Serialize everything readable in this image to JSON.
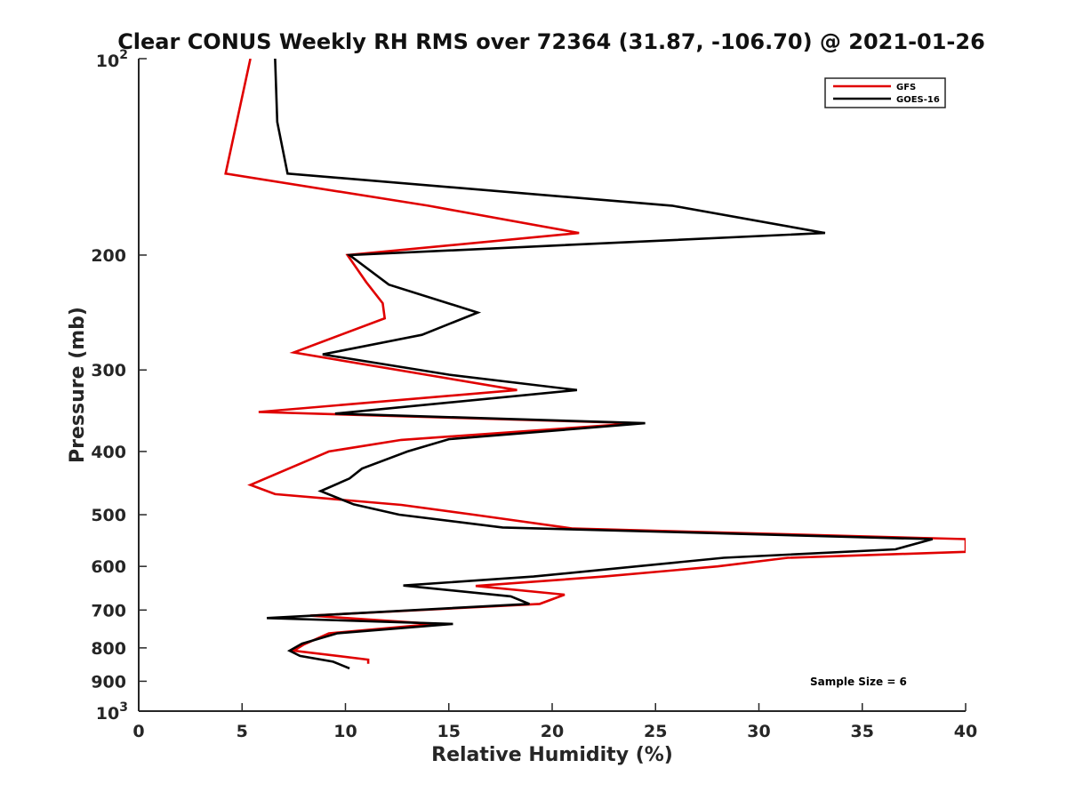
{
  "chart_data": {
    "type": "line",
    "title": "Clear CONUS Weekly RH RMS over 72364 (31.87, -106.70) @ 2021-01-26",
    "xlabel": "Relative Humidity (%)",
    "ylabel": "Pressure (mb)",
    "xlim": [
      0,
      40
    ],
    "ylim": [
      100,
      1000
    ],
    "y_scale": "log",
    "y_reversed": true,
    "x_ticks": [
      "0",
      "5",
      "10",
      "15",
      "20",
      "25",
      "30",
      "35",
      "40"
    ],
    "y_ticks": [
      {
        "value": 100,
        "base": "10",
        "exp": "2"
      },
      {
        "value": 200,
        "label": "200"
      },
      {
        "value": 300,
        "label": "300"
      },
      {
        "value": 400,
        "label": "400"
      },
      {
        "value": 500,
        "label": "500"
      },
      {
        "value": 600,
        "label": "600"
      },
      {
        "value": 700,
        "label": "700"
      },
      {
        "value": 800,
        "label": "800"
      },
      {
        "value": 900,
        "label": "900"
      },
      {
        "value": 1000,
        "base": "10",
        "exp": "3"
      }
    ],
    "legend_position": "top-right",
    "grid": false,
    "annotation": "Sample Size = 6",
    "series": [
      {
        "name": "GFS",
        "color": "#e00000",
        "points": [
          [
            5.4,
            100
          ],
          [
            4.2,
            150
          ],
          [
            14.0,
            168
          ],
          [
            21.3,
            185
          ],
          [
            10.1,
            200
          ],
          [
            11.0,
            220
          ],
          [
            11.8,
            237
          ],
          [
            11.9,
            250
          ],
          [
            7.5,
            282
          ],
          [
            18.3,
            322
          ],
          [
            5.8,
            348
          ],
          [
            24.2,
            362
          ],
          [
            12.7,
            384
          ],
          [
            9.2,
            400
          ],
          [
            5.4,
            450
          ],
          [
            6.6,
            465
          ],
          [
            12.7,
            483
          ],
          [
            16.2,
            500
          ],
          [
            21.0,
            525
          ],
          [
            40.0,
            545
          ],
          [
            40.0,
            570
          ],
          [
            31.4,
            582
          ],
          [
            28.0,
            600
          ],
          [
            22.5,
            622
          ],
          [
            16.3,
            643
          ],
          [
            20.6,
            663
          ],
          [
            19.4,
            685
          ],
          [
            8.3,
            714
          ],
          [
            14.3,
            735
          ],
          [
            9.2,
            760
          ],
          [
            8.0,
            790
          ],
          [
            7.5,
            808
          ],
          [
            11.1,
            834
          ],
          [
            11.1,
            846
          ]
        ]
      },
      {
        "name": "GOES-16",
        "color": "#000000",
        "points": [
          [
            6.6,
            100
          ],
          [
            6.7,
            125
          ],
          [
            7.2,
            150
          ],
          [
            25.8,
            168
          ],
          [
            33.2,
            185
          ],
          [
            10.2,
            200
          ],
          [
            12.1,
            222
          ],
          [
            16.4,
            245
          ],
          [
            13.7,
            265
          ],
          [
            8.9,
            284
          ],
          [
            15.0,
            305
          ],
          [
            21.2,
            322
          ],
          [
            9.5,
            350
          ],
          [
            24.5,
            362
          ],
          [
            15.0,
            383
          ],
          [
            13.0,
            400
          ],
          [
            10.8,
            425
          ],
          [
            10.2,
            440
          ],
          [
            8.8,
            460
          ],
          [
            10.4,
            482
          ],
          [
            12.6,
            500
          ],
          [
            17.6,
            523
          ],
          [
            38.4,
            545
          ],
          [
            36.6,
            565
          ],
          [
            28.3,
            582
          ],
          [
            19.1,
            622
          ],
          [
            12.8,
            642
          ],
          [
            18.0,
            667
          ],
          [
            18.9,
            685
          ],
          [
            6.2,
            720
          ],
          [
            15.2,
            735
          ],
          [
            9.6,
            760
          ],
          [
            7.9,
            788
          ],
          [
            7.3,
            808
          ],
          [
            7.8,
            823
          ],
          [
            9.4,
            840
          ],
          [
            10.2,
            860
          ]
        ]
      }
    ]
  }
}
